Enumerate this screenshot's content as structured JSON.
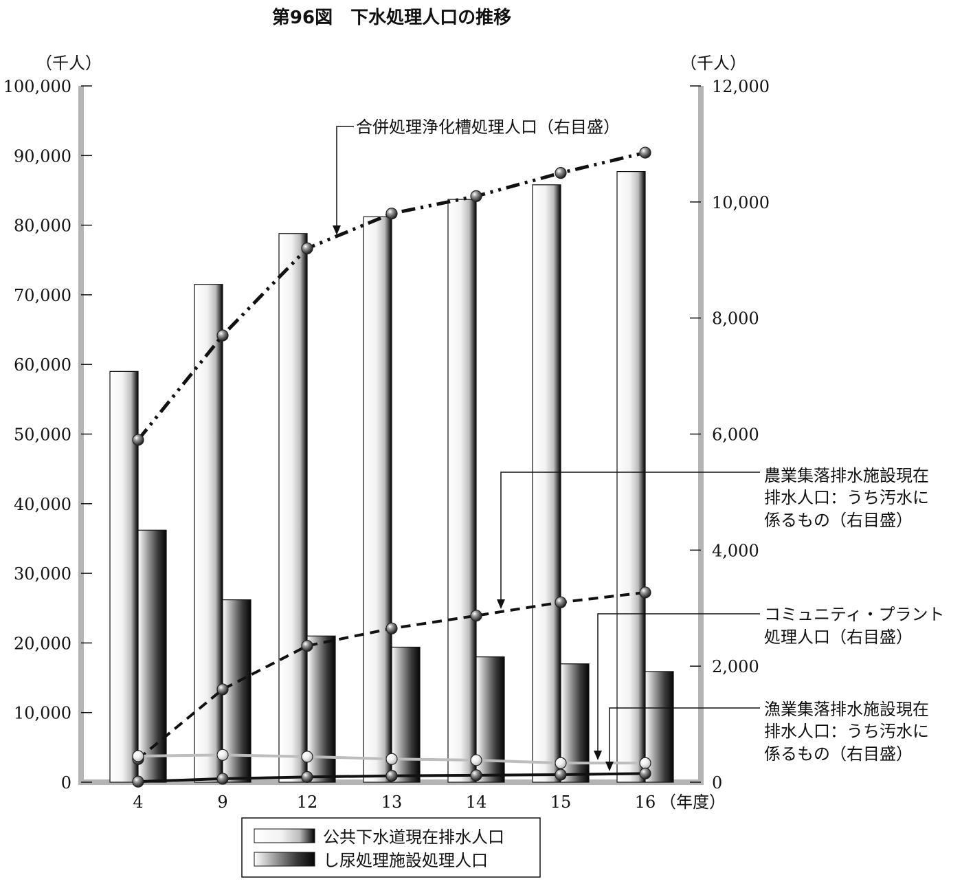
{
  "chart_data": {
    "type": "bar",
    "title": "第96図　下水処理人口の推移",
    "left_axis": {
      "unit_label": "（千人）",
      "ylim": [
        0,
        100000
      ],
      "ticks": [
        "0",
        "10,000",
        "20,000",
        "30,000",
        "40,000",
        "50,000",
        "60,000",
        "70,000",
        "80,000",
        "90,000",
        "100,000"
      ]
    },
    "right_axis": {
      "unit_label": "（千人）",
      "ylim": [
        0,
        12000
      ],
      "ticks": [
        "0",
        "2,000",
        "4,000",
        "6,000",
        "8,000",
        "10,000",
        "12,000"
      ]
    },
    "categories": [
      "4",
      "9",
      "12",
      "13",
      "14",
      "15",
      "16"
    ],
    "x_unit_label": "（年度）",
    "bar_series": [
      {
        "name": "公共下水道現在排水人口",
        "axis": "left",
        "values": [
          59000,
          71500,
          78800,
          81200,
          83700,
          85800,
          87700
        ]
      },
      {
        "name": "し尿処理施設処理人口",
        "axis": "left",
        "values": [
          36200,
          26200,
          21000,
          19400,
          18000,
          17000,
          15900
        ]
      }
    ],
    "line_series": [
      {
        "name": "合併処理浄化槽処理人口（右目盛）",
        "axis": "right",
        "style": "dash-dot-dot",
        "values": [
          5900,
          7700,
          9200,
          9800,
          10100,
          10500,
          10850
        ]
      },
      {
        "name": "農業集落排水施設現在排水人口：うち汚水に係るもの（右目盛）",
        "axis": "right",
        "style": "dashed",
        "values": [
          400,
          1600,
          2350,
          2650,
          2870,
          3100,
          3270
        ]
      },
      {
        "name": "コミュニティ・プラント処理人口（右目盛）",
        "axis": "right",
        "style": "solid-gray",
        "values": [
          450,
          470,
          440,
          400,
          380,
          330,
          330
        ]
      },
      {
        "name": "漁業集落排水施設現在排水人口：うち汚水に係るもの（右目盛）",
        "axis": "right",
        "style": "solid-black",
        "values": [
          10,
          60,
          90,
          110,
          120,
          130,
          150
        ]
      }
    ],
    "annotations": [
      {
        "lines": [
          "合併処理浄化槽処理人口（右目盛）"
        ]
      },
      {
        "lines": [
          "農業集落排水施設現在",
          "排水人口：うち汚水に",
          "係るもの（右目盛）"
        ]
      },
      {
        "lines": [
          "コミュニティ・プラント",
          "処理人口（右目盛）"
        ]
      },
      {
        "lines": [
          "漁業集落排水施設現在",
          "排水人口：うち汚水に",
          "係るもの（右目盛）"
        ]
      }
    ],
    "legend": {
      "placement": "bottom-center",
      "items": [
        "公共下水道現在排水人口",
        "し尿処理施設処理人口"
      ]
    },
    "grid": false
  },
  "colors": {
    "axis": "#b4b4b4",
    "line_main": "#111111",
    "line_gray": "#bdbdbd",
    "bar_light_edge": "#111111"
  }
}
